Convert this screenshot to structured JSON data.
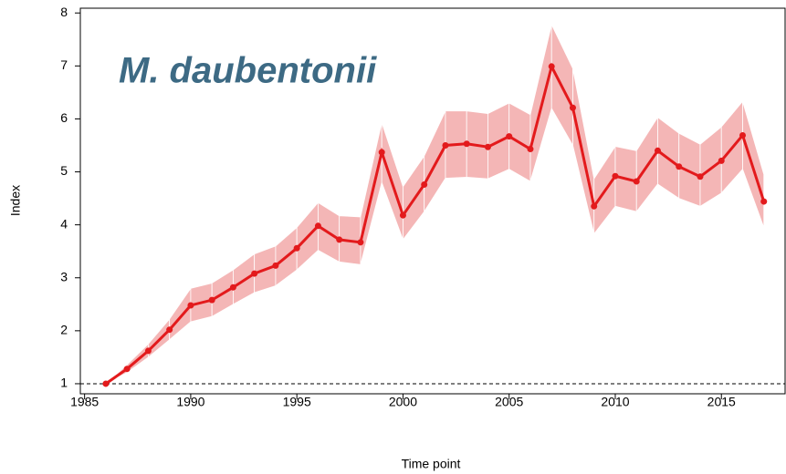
{
  "chart_data": {
    "type": "line",
    "annotation": "M. daubentonii",
    "xlabel": "Time point",
    "ylabel": "Index",
    "x": [
      1986,
      1987,
      1988,
      1989,
      1990,
      1991,
      1992,
      1993,
      1994,
      1995,
      1996,
      1997,
      1998,
      1999,
      2000,
      2001,
      2002,
      2003,
      2004,
      2005,
      2006,
      2007,
      2008,
      2009,
      2010,
      2011,
      2012,
      2013,
      2014,
      2015,
      2016,
      2017
    ],
    "values": [
      1.0,
      1.28,
      1.62,
      2.02,
      2.48,
      2.58,
      2.82,
      3.08,
      3.23,
      3.56,
      3.98,
      3.72,
      3.67,
      5.37,
      4.18,
      4.76,
      5.5,
      5.53,
      5.47,
      5.67,
      5.43,
      6.99,
      6.21,
      4.35,
      4.92,
      4.82,
      5.4,
      5.1,
      4.91,
      5.21,
      5.69,
      4.44
    ],
    "upper": [
      1.0,
      1.36,
      1.75,
      2.22,
      2.8,
      2.9,
      3.15,
      3.45,
      3.6,
      3.95,
      4.42,
      4.17,
      4.15,
      5.93,
      4.72,
      5.3,
      6.15,
      6.15,
      6.1,
      6.3,
      6.08,
      7.78,
      6.95,
      4.87,
      5.48,
      5.4,
      6.03,
      5.73,
      5.52,
      5.85,
      6.33,
      4.95
    ],
    "lower": [
      1.0,
      1.21,
      1.5,
      1.83,
      2.17,
      2.27,
      2.5,
      2.72,
      2.85,
      3.15,
      3.52,
      3.3,
      3.25,
      4.8,
      3.72,
      4.25,
      4.88,
      4.9,
      4.87,
      5.05,
      4.82,
      6.2,
      5.5,
      3.83,
      4.35,
      4.25,
      4.77,
      4.5,
      4.35,
      4.6,
      5.05,
      3.95
    ],
    "color": "#e31a1c",
    "band_color": "#f4b6b6",
    "annotation_color": "#3d6a84",
    "reference_line": 1,
    "xlim": [
      1984.8,
      2018.0
    ],
    "ylim": [
      0.81,
      8.09
    ],
    "xticks": [
      1985,
      1990,
      1995,
      2000,
      2005,
      2010,
      2015
    ],
    "yticks": [
      1,
      2,
      3,
      4,
      5,
      6,
      7,
      8
    ]
  }
}
